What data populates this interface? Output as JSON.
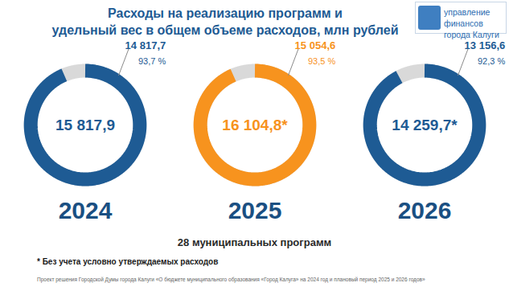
{
  "chart_data": {
    "type": "donut",
    "title": "Расходы на реализацию программ и\nудельный вес в общем объеме расходов, млн рублей",
    "subtitle": "28 муниципальных программ",
    "notes": [
      "* Без учета условно утверждаемых расходов",
      "Проект решения  Городской Думы города Калуги «О бюджете  муниципального образования «Город Калуга» на 2024 год и плановый период  2025 и 2026 годов»"
    ],
    "logo_text": "управление финансов города Калуги",
    "categories": [
      "2024",
      "2025",
      "2026"
    ],
    "totals": [
      15817.9,
      16104.8,
      14259.7
    ],
    "total_labels": [
      "15 817,9",
      "16 104,8*",
      "14 259,7*"
    ],
    "program_expenses": [
      14817.7,
      15054.6,
      13156.6
    ],
    "program_expense_labels": [
      "14 817,7",
      "15 054,6",
      "13 156,6"
    ],
    "values": [
      93.7,
      93.5,
      92.3
    ],
    "value_labels": [
      "93,7 %",
      "93,5 %",
      "92,3 %"
    ],
    "colors": [
      "#1e5b94",
      "#f7931e",
      "#1e5b94"
    ],
    "data_labels": true
  }
}
